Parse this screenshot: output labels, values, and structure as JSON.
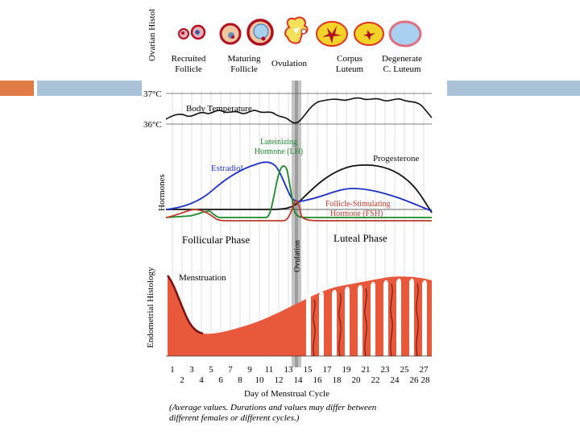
{
  "colors": {
    "accent_orange": "#e07b45",
    "accent_blue": "#a9c2d8",
    "estradiol": "#1a2fc4",
    "lh": "#1c8a2a",
    "fsh": "#c0392b",
    "progesterone": "#111111",
    "endometrium": "#e8583a"
  },
  "sections": {
    "ovarian_histology": "Ovarian Histology",
    "hormones": "Hormones",
    "endometrial_histology": "Endometrial Histology"
  },
  "stages": [
    {
      "line1": "Recruited",
      "line2": "Follicle"
    },
    {
      "line1": "Maturing",
      "line2": "Follicle"
    },
    {
      "line1": "Ovulation",
      "line2": ""
    },
    {
      "line1": "Corpus",
      "line2": "Luteum"
    },
    {
      "line1": "Degenerate",
      "line2": "C. Luteum"
    }
  ],
  "temperature": {
    "title": "Body Temperature",
    "high": "37°C",
    "low": "36°C"
  },
  "hormones": {
    "lh_line1": "Luteinizing",
    "lh_line2": "Hormone (LH)",
    "estradiol": "Estradiol",
    "progesterone": "Progesterone",
    "fsh_line1": "Follicle-Stimulating",
    "fsh_line2": "Hormone (FSH)"
  },
  "phases": {
    "follicular": "Follicular Phase",
    "ovulation": "Ovulation",
    "luteal": "Luteal Phase"
  },
  "endometrium": {
    "menstruation": "Menstruation"
  },
  "axis": {
    "odd_days": [
      "1",
      "3",
      "5",
      "7",
      "9",
      "11",
      "13",
      "15",
      "17",
      "19",
      "21",
      "23",
      "25",
      "27"
    ],
    "even_days": [
      "2",
      "4",
      "6",
      "8",
      "10",
      "12",
      "14",
      "16",
      "18",
      "20",
      "22",
      "24",
      "26",
      "28"
    ],
    "title": "Day of Menstrual Cycle"
  },
  "footnote": {
    "line1": "(Average values. Durations and values may differ between",
    "line2": "different females or different cycles.)"
  }
}
